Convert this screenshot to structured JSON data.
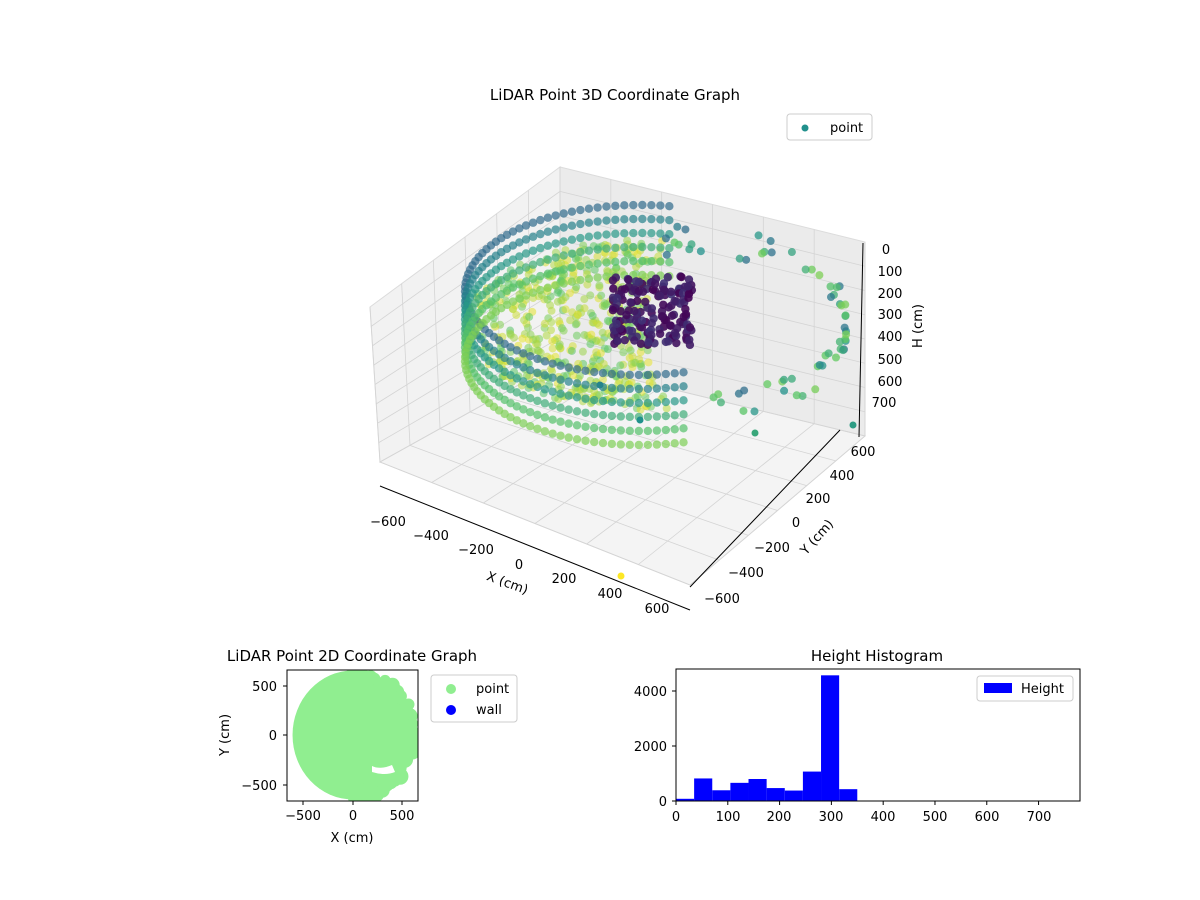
{
  "chart_data": [
    {
      "type": "scatter3d",
      "title": "LiDAR Point 3D Coordinate Graph",
      "xlabel": "X (cm)",
      "ylabel": "Y (cm)",
      "zlabel": "H (cm)",
      "xticks": [
        "−600",
        "−400",
        "−200",
        "0",
        "200",
        "400",
        "600"
      ],
      "yticks": [
        "−600",
        "−400",
        "−200",
        "0",
        "200",
        "400",
        "600"
      ],
      "zticks": [
        "0",
        "100",
        "200",
        "300",
        "400",
        "500",
        "600",
        "700"
      ],
      "xlim": [
        -650,
        650
      ],
      "ylim": [
        -650,
        650
      ],
      "zlim": [
        0,
        780
      ],
      "zinverted": true,
      "colormap": "viridis",
      "series": [
        {
          "name": "point",
          "color": "#21908c",
          "description_points": "dense ring of points around the room wall (r≈600 cm), floor points at H≈300–350 cm, dark cluster near origin"
        }
      ],
      "legend": "top-right",
      "grid": true
    },
    {
      "type": "scatter",
      "title": "LiDAR Point 2D Coordinate Graph",
      "xlabel": "X (cm)",
      "ylabel": "Y (cm)",
      "xticks": [
        "−500",
        "0",
        "500"
      ],
      "yticks": [
        "−500",
        "0",
        "500"
      ],
      "xlim": [
        -650,
        650
      ],
      "ylim": [
        -650,
        650
      ],
      "series": [
        {
          "name": "point",
          "color": "#90ee90"
        },
        {
          "name": "wall",
          "color": "#0000ff"
        }
      ],
      "legend": "outside-right"
    },
    {
      "type": "bar",
      "title": "Height Histogram",
      "xlabel": "",
      "ylabel": "",
      "bin_edges": [
        0,
        35,
        70,
        105,
        140,
        175,
        210,
        245,
        280,
        315,
        350
      ],
      "values": [
        80,
        820,
        390,
        660,
        800,
        470,
        380,
        1070,
        4570,
        430
      ],
      "xlim": [
        0,
        780
      ],
      "ylim": [
        0,
        4800
      ],
      "xticks": [
        "0",
        "100",
        "200",
        "300",
        "400",
        "500",
        "600",
        "700"
      ],
      "yticks": [
        "0",
        "2000",
        "4000"
      ],
      "series": [
        {
          "name": "Height",
          "color": "#0000ff"
        }
      ],
      "legend": "top-right"
    }
  ]
}
